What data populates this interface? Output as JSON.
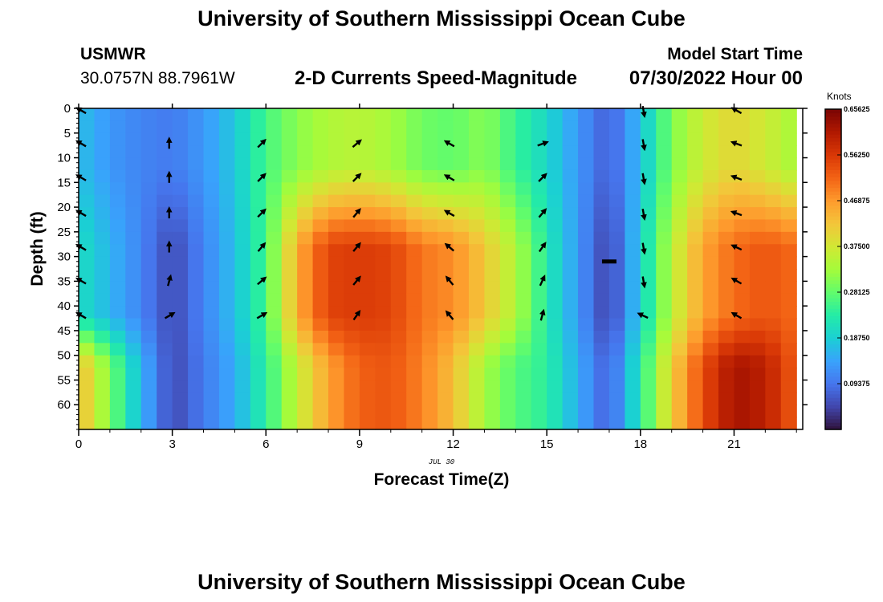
{
  "page": {
    "title_top": "University of Southern Mississippi Ocean Cube",
    "title_bottom": "University of Southern Mississippi Ocean Cube",
    "station_name": "USMWR",
    "station_coords": "30.0757N  88.7961W",
    "chart_title": "2-D Currents Speed-Magnitude",
    "model_start_label": "Model Start Time",
    "model_start_value": "07/30/2022 Hour 00",
    "date_label": "JUL 30"
  },
  "chart_data": {
    "type": "heatmap",
    "title": "2-D Currents Speed-Magnitude",
    "xlabel": "Forecast Time(Z)",
    "ylabel": "Depth (ft)",
    "xlim": [
      0,
      23.2
    ],
    "ylim": [
      65,
      0
    ],
    "x_ticks": [
      0,
      3,
      6,
      9,
      12,
      15,
      18,
      21
    ],
    "y_ticks": [
      0,
      5,
      10,
      15,
      20,
      25,
      30,
      35,
      40,
      45,
      50,
      55,
      60
    ],
    "colorbar": {
      "label": "Knots",
      "ticks": [
        "0.09375",
        "0.18750",
        "0.28125",
        "0.37500",
        "0.46875",
        "0.56250",
        "0.65625"
      ],
      "min": 0.0,
      "max": 0.65625,
      "colors": [
        "#30123b",
        "#4145ab",
        "#4675ed",
        "#39a2fc",
        "#1bcfd4",
        "#24eca6",
        "#61fc6c",
        "#a4fc3b",
        "#d1e834",
        "#f3c63a",
        "#fe9b2d",
        "#f36315",
        "#d93806",
        "#b11901",
        "#7a0403"
      ]
    },
    "hours": [
      0,
      1,
      2,
      3,
      4,
      5,
      6,
      7,
      8,
      9,
      10,
      11,
      12,
      13,
      14,
      15,
      16,
      17,
      18,
      19,
      20,
      21,
      22,
      23
    ],
    "speed_profiles_knots": {
      "surface_0_to_20ft": [
        0.17,
        0.13,
        0.11,
        0.1,
        0.13,
        0.18,
        0.26,
        0.31,
        0.34,
        0.35,
        0.33,
        0.29,
        0.28,
        0.31,
        0.25,
        0.2,
        0.13,
        0.07,
        0.17,
        0.3,
        0.37,
        0.4,
        0.37,
        0.33
      ],
      "mid_20_to_45ft": [
        0.21,
        0.16,
        0.11,
        0.05,
        0.11,
        0.17,
        0.26,
        0.45,
        0.55,
        0.56,
        0.55,
        0.5,
        0.48,
        0.42,
        0.34,
        0.23,
        0.13,
        0.04,
        0.19,
        0.35,
        0.46,
        0.51,
        0.53,
        0.51
      ],
      "bottom_45_to_65ft": [
        0.44,
        0.3,
        0.16,
        0.05,
        0.1,
        0.15,
        0.24,
        0.36,
        0.46,
        0.52,
        0.53,
        0.49,
        0.43,
        0.33,
        0.27,
        0.24,
        0.15,
        0.07,
        0.23,
        0.41,
        0.54,
        0.62,
        0.6,
        0.52
      ]
    },
    "vector_hours": [
      0.1,
      2.9,
      5.85,
      8.9,
      11.9,
      14.85,
      18.1,
      21.1
    ],
    "vector_depths_ft": [
      0.5,
      7.2,
      14.1,
      21.3,
      28.2,
      35.0,
      42.0
    ],
    "vector_directions_deg": [
      [
        300,
        300,
        300,
        300,
        300,
        300,
        300
      ],
      [
        null,
        0,
        0,
        0,
        0,
        15,
        60
      ],
      [
        null,
        45,
        45,
        45,
        40,
        50,
        60
      ],
      [
        null,
        50,
        45,
        40,
        40,
        40,
        35
      ],
      [
        null,
        300,
        300,
        300,
        310,
        320,
        320
      ],
      [
        null,
        70,
        45,
        40,
        35,
        25,
        15
      ],
      [
        170,
        170,
        170,
        170,
        170,
        170,
        295
      ],
      [
        300,
        290,
        290,
        290,
        295,
        300,
        300
      ]
    ],
    "vector_present": [
      [
        true,
        true,
        true,
        true,
        true,
        true,
        true
      ],
      [
        false,
        true,
        true,
        true,
        true,
        true,
        true
      ],
      [
        false,
        true,
        true,
        true,
        true,
        true,
        true
      ],
      [
        false,
        true,
        true,
        true,
        true,
        true,
        true
      ],
      [
        false,
        true,
        true,
        true,
        true,
        true,
        true
      ],
      [
        false,
        true,
        true,
        true,
        true,
        true,
        true
      ],
      [
        true,
        true,
        true,
        true,
        true,
        true,
        true
      ],
      [
        true,
        true,
        true,
        true,
        true,
        true,
        true
      ]
    ],
    "slack_marker": {
      "hour": 17.0,
      "depth_ft": 31.0
    }
  }
}
